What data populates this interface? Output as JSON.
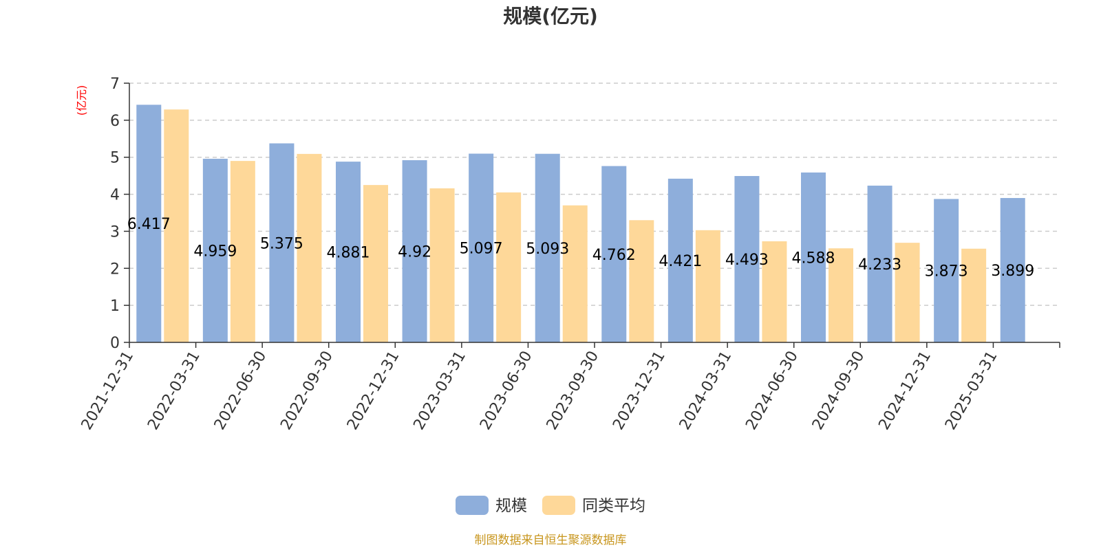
{
  "chart_data": {
    "type": "bar",
    "title": "规模(亿元)",
    "ylabel": "(亿元)",
    "xlabel": "",
    "ylim": [
      0,
      7
    ],
    "yticks": [
      0,
      1,
      2,
      3,
      4,
      5,
      6,
      7
    ],
    "grid": "horizontal dashed",
    "legend_position": "bottom-center",
    "categories": [
      "2021-12-31",
      "2022-03-31",
      "2022-06-30",
      "2022-09-30",
      "2022-12-31",
      "2023-03-31",
      "2023-06-30",
      "2023-09-30",
      "2023-12-31",
      "2024-03-31",
      "2024-06-30",
      "2024-09-30",
      "2024-12-31",
      "2025-03-31"
    ],
    "series": [
      {
        "name": "规模",
        "color": "#8eaedb",
        "values": [
          6.417,
          4.959,
          5.375,
          4.881,
          4.92,
          5.097,
          5.093,
          4.762,
          4.421,
          4.493,
          4.588,
          4.233,
          3.873,
          3.899
        ],
        "data_labels": [
          "6.417",
          "4.959",
          "5.375",
          "4.881",
          "4.92",
          "5.097",
          "5.093",
          "4.762",
          "4.421",
          "4.493",
          "4.588",
          "4.233",
          "3.873",
          "3.899"
        ]
      },
      {
        "name": "同类平均",
        "color": "#fed899",
        "values": [
          6.29,
          4.9,
          5.09,
          4.25,
          4.16,
          4.05,
          3.7,
          3.3,
          3.03,
          2.73,
          2.54,
          2.69,
          2.53,
          null
        ]
      }
    ]
  },
  "source_text": "制图数据来自恒生聚源数据库"
}
